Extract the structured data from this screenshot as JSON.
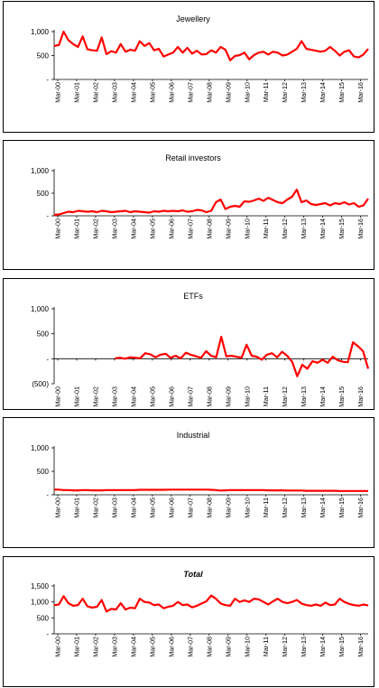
{
  "chart_data": [
    {
      "type": "line",
      "title": "Jewellery",
      "title_style": "normal",
      "yticks": [
        "-",
        "500",
        "1,000"
      ],
      "ylim": [
        0,
        1000
      ],
      "series": [
        {
          "values": [
            700,
            720,
            1000,
            820,
            740,
            680,
            900,
            630,
            610,
            600,
            880,
            530,
            590,
            560,
            740,
            580,
            620,
            600,
            800,
            700,
            760,
            610,
            640,
            480,
            520,
            560,
            680,
            560,
            660,
            540,
            600,
            520,
            530,
            610,
            560,
            680,
            620,
            400,
            490,
            510,
            560,
            420,
            510,
            560,
            580,
            520,
            580,
            560,
            500,
            520,
            580,
            640,
            800,
            640,
            620,
            600,
            580,
            600,
            680,
            600,
            500,
            580,
            610,
            480,
            460,
            520,
            640
          ]
        }
      ]
    },
    {
      "type": "line",
      "title": "Retail investors",
      "title_style": "normal",
      "yticks": [
        "-",
        "500",
        "1,000"
      ],
      "ylim": [
        0,
        1000
      ],
      "series": [
        {
          "values": [
            20,
            30,
            60,
            90,
            80,
            110,
            100,
            90,
            100,
            80,
            110,
            100,
            80,
            90,
            100,
            110,
            80,
            100,
            90,
            80,
            70,
            100,
            90,
            110,
            100,
            110,
            100,
            120,
            90,
            100,
            130,
            120,
            80,
            110,
            300,
            360,
            150,
            200,
            220,
            200,
            320,
            310,
            340,
            380,
            330,
            400,
            350,
            300,
            280,
            360,
            420,
            580,
            300,
            340,
            260,
            240,
            260,
            280,
            230,
            280,
            260,
            300,
            250,
            280,
            200,
            230,
            380
          ]
        }
      ]
    },
    {
      "type": "line",
      "title": "ETFs",
      "title_style": "normal",
      "yticks": [
        "(500)",
        "-",
        "500",
        "1,000"
      ],
      "ylim": [
        -500,
        1000
      ],
      "series": [
        {
          "values": [
            null,
            null,
            null,
            null,
            null,
            null,
            null,
            null,
            null,
            null,
            null,
            null,
            10,
            20,
            0,
            30,
            20,
            10,
            110,
            90,
            30,
            80,
            100,
            20,
            60,
            10,
            120,
            80,
            50,
            20,
            150,
            60,
            30,
            440,
            50,
            60,
            40,
            20,
            280,
            60,
            40,
            -20,
            80,
            110,
            30,
            140,
            60,
            -60,
            -350,
            -120,
            -200,
            -50,
            -80,
            -20,
            -80,
            40,
            -30,
            -60,
            -70,
            330,
            250,
            150,
            -200
          ]
        }
      ]
    },
    {
      "type": "line",
      "title": "Industrial",
      "title_style": "normal",
      "yticks": [
        "-",
        "500",
        "1,000"
      ],
      "ylim": [
        0,
        1000
      ],
      "series": [
        {
          "values": [
            110,
            110,
            100,
            100,
            95,
            95,
            100,
            100,
            95,
            95,
            95,
            100,
            100,
            100,
            100,
            100,
            100,
            100,
            105,
            105,
            105,
            105,
            105,
            105,
            110,
            110,
            110,
            110,
            110,
            110,
            110,
            110,
            110,
            105,
            100,
            90,
            95,
            100,
            100,
            100,
            100,
            100,
            100,
            100,
            100,
            95,
            95,
            95,
            95,
            90,
            90,
            90,
            90,
            85,
            85,
            85,
            85,
            85,
            85,
            85,
            80,
            80,
            80,
            80,
            80,
            80,
            80
          ]
        }
      ]
    },
    {
      "type": "line",
      "title": "Total",
      "title_style": "bold-italic",
      "yticks": [
        "-",
        "500",
        "1,000",
        "1,500"
      ],
      "ylim": [
        0,
        1500
      ],
      "series": [
        {
          "values": [
            900,
            920,
            1180,
            960,
            880,
            900,
            1100,
            860,
            820,
            850,
            1060,
            700,
            780,
            760,
            960,
            760,
            820,
            800,
            1100,
            1000,
            980,
            900,
            920,
            800,
            850,
            880,
            1000,
            900,
            920,
            830,
            880,
            950,
            1020,
            1200,
            1100,
            950,
            900,
            880,
            1100,
            1000,
            1050,
            1000,
            1100,
            1080,
            1000,
            920,
            1020,
            1100,
            1000,
            960,
            1000,
            1060,
            950,
            900,
            880,
            920,
            880,
            980,
            900,
            920,
            1100,
            1000,
            940,
            900,
            880,
            920,
            890
          ]
        }
      ]
    }
  ],
  "x_axis_labels": [
    "Mar-00",
    "Mar-01",
    "Mar-02",
    "Mar-03",
    "Mar-04",
    "Mar-05",
    "Mar-06",
    "Mar-07",
    "Mar-08",
    "Mar-09",
    "Mar-10",
    "Mar-11",
    "Mar-12",
    "Mar-13",
    "Mar-14",
    "Mar-15",
    "Mar-16"
  ],
  "colors": {
    "line": "#ff0000",
    "axis": "#000000"
  }
}
